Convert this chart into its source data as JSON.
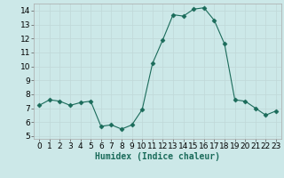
{
  "x": [
    0,
    1,
    2,
    3,
    4,
    5,
    6,
    7,
    8,
    9,
    10,
    11,
    12,
    13,
    14,
    15,
    16,
    17,
    18,
    19,
    20,
    21,
    22,
    23
  ],
  "y": [
    7.2,
    7.6,
    7.5,
    7.2,
    7.4,
    7.5,
    5.7,
    5.8,
    5.5,
    5.8,
    6.9,
    10.2,
    11.9,
    13.7,
    13.6,
    14.1,
    14.2,
    13.3,
    11.6,
    7.6,
    7.5,
    7.0,
    6.5,
    6.8
  ],
  "xlabel": "Humidex (Indice chaleur)",
  "xlim": [
    -0.5,
    23.5
  ],
  "ylim": [
    4.8,
    14.5
  ],
  "yticks": [
    5,
    6,
    7,
    8,
    9,
    10,
    11,
    12,
    13,
    14
  ],
  "xticks": [
    0,
    1,
    2,
    3,
    4,
    5,
    6,
    7,
    8,
    9,
    10,
    11,
    12,
    13,
    14,
    15,
    16,
    17,
    18,
    19,
    20,
    21,
    22,
    23
  ],
  "line_color": "#1a6b5a",
  "marker": "D",
  "marker_size": 2.5,
  "bg_color": "#cce8e8",
  "grid_color": "#c0d8d8",
  "xlabel_fontsize": 7,
  "tick_fontsize": 6.5
}
